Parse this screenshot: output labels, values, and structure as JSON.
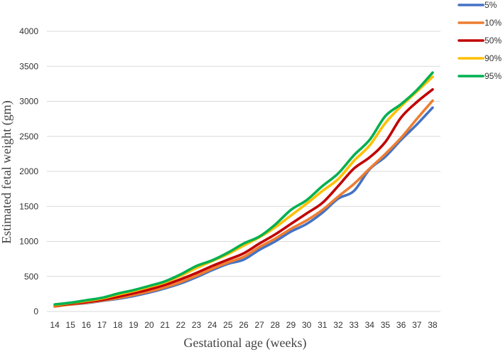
{
  "chart_data": {
    "type": "line",
    "xlabel": "Gestational age (weeks)",
    "ylabel": "Estimated fetal weight (gm)",
    "x": [
      14,
      15,
      16,
      17,
      18,
      19,
      20,
      21,
      22,
      23,
      24,
      25,
      26,
      27,
      28,
      29,
      30,
      31,
      32,
      33,
      34,
      35,
      36,
      37,
      38
    ],
    "ylim": [
      0,
      4000
    ],
    "yticks": [
      0,
      500,
      1000,
      1500,
      2000,
      2500,
      3000,
      3500,
      4000
    ],
    "grid": "horizontal",
    "legend_position": "top-right",
    "series": [
      {
        "name": "5%",
        "color": "#4472C4",
        "values": [
          80,
          100,
          120,
          150,
          180,
          220,
          270,
          330,
          400,
          490,
          590,
          680,
          740,
          880,
          1000,
          1140,
          1250,
          1410,
          1610,
          1720,
          2030,
          2210,
          2450,
          2670,
          2910
        ]
      },
      {
        "name": "10%",
        "color": "#ED7D31",
        "values": [
          70,
          100,
          125,
          155,
          190,
          235,
          285,
          345,
          420,
          510,
          610,
          700,
          780,
          920,
          1040,
          1180,
          1300,
          1450,
          1640,
          1820,
          2040,
          2250,
          2480,
          2750,
          3010
        ]
      },
      {
        "name": "50%",
        "color": "#C00000",
        "values": [
          85,
          110,
          135,
          165,
          210,
          260,
          315,
          380,
          460,
          550,
          650,
          740,
          830,
          970,
          1100,
          1250,
          1400,
          1550,
          1790,
          2040,
          2200,
          2420,
          2770,
          2990,
          3170
        ]
      },
      {
        "name": "90%",
        "color": "#FFC000",
        "values": [
          90,
          120,
          150,
          185,
          240,
          290,
          350,
          415,
          510,
          620,
          720,
          820,
          940,
          1060,
          1200,
          1370,
          1540,
          1720,
          1890,
          2150,
          2370,
          2690,
          2930,
          3140,
          3350
        ]
      },
      {
        "name": "95%",
        "color": "#00B050",
        "values": [
          100,
          125,
          160,
          195,
          255,
          305,
          365,
          430,
          530,
          650,
          730,
          840,
          970,
          1070,
          1240,
          1450,
          1590,
          1790,
          1970,
          2230,
          2450,
          2790,
          2960,
          3160,
          3410
        ]
      }
    ]
  }
}
